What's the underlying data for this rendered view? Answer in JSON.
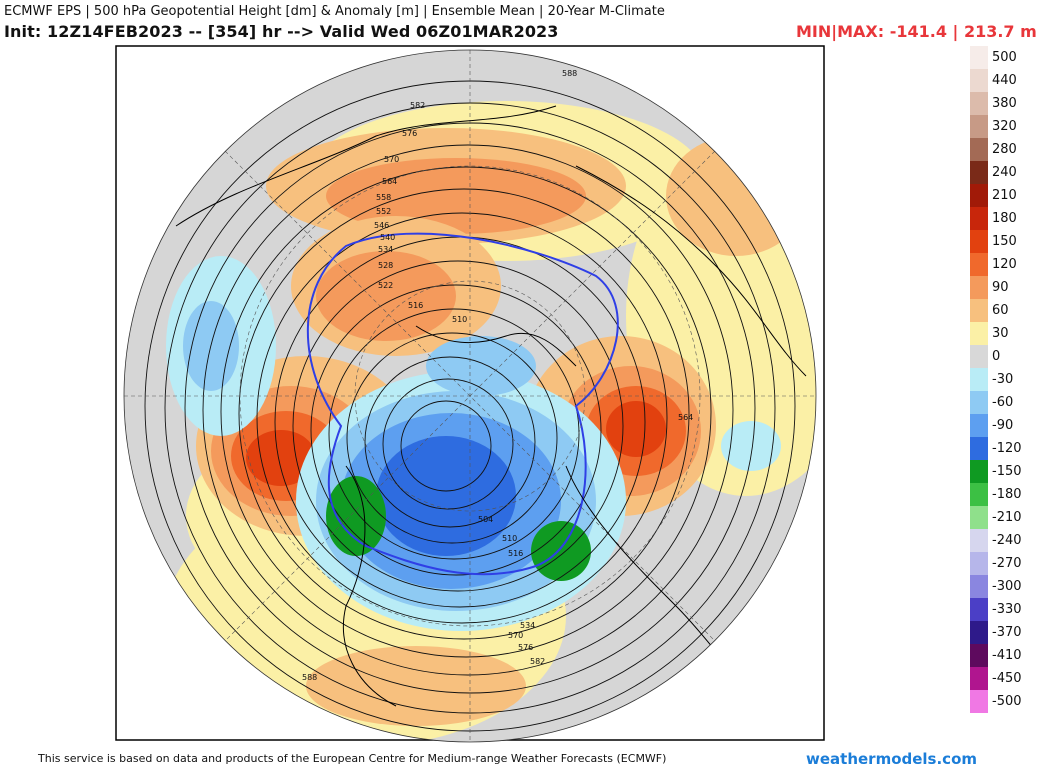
{
  "header": {
    "line1": "ECMWF EPS | 500 hPa Geopotential Height [dm] & Anomaly [m] | Ensemble Mean | 20-Year M-Climate",
    "line2": "Init: 12Z14FEB2023 -- [354] hr --> Valid Wed 06Z01MAR2023",
    "minmax": "MIN|MAX: -141.4 | 213.7 m"
  },
  "footer": {
    "attribution": "This service is based on data and products of the European Centre for Medium-range Weather Forecasts (ECMWF)",
    "brand": "weathermodels.com"
  },
  "colorbar": {
    "levels": [
      {
        "label": "500",
        "color": "#f6ece9"
      },
      {
        "label": "440",
        "color": "#ecd9d0"
      },
      {
        "label": "380",
        "color": "#dcbbab"
      },
      {
        "label": "320",
        "color": "#c79a86"
      },
      {
        "label": "280",
        "color": "#a36a55"
      },
      {
        "label": "240",
        "color": "#7a2a18"
      },
      {
        "label": "210",
        "color": "#a11a08"
      },
      {
        "label": "180",
        "color": "#c8260b"
      },
      {
        "label": "150",
        "color": "#e2410f"
      },
      {
        "label": "120",
        "color": "#f0692c"
      },
      {
        "label": "90",
        "color": "#f49a5c"
      },
      {
        "label": "60",
        "color": "#f7c07e"
      },
      {
        "label": "30",
        "color": "#fbf0a6"
      },
      {
        "label": "0",
        "color": "#d8d8d8"
      },
      {
        "label": "-30",
        "color": "#b9ecf6"
      },
      {
        "label": "-60",
        "color": "#8ecaf3"
      },
      {
        "label": "-90",
        "color": "#5d9ff0"
      },
      {
        "label": "-120",
        "color": "#2e6ce0"
      },
      {
        "label": "-150",
        "color": "#0f9a22"
      },
      {
        "label": "-180",
        "color": "#3cc044"
      },
      {
        "label": "-210",
        "color": "#8fe08b"
      },
      {
        "label": "-240",
        "color": "#d6d6ee"
      },
      {
        "label": "-270",
        "color": "#b6b6ea"
      },
      {
        "label": "-300",
        "color": "#8a86e0"
      },
      {
        "label": "-330",
        "color": "#4b3fc6"
      },
      {
        "label": "-370",
        "color": "#2e1a8a"
      },
      {
        "label": "-410",
        "color": "#5e0a5e"
      },
      {
        "label": "-450",
        "color": "#b0158f"
      },
      {
        "label": "-500",
        "color": "#f078e4"
      }
    ]
  },
  "map": {
    "contour_labels": [
      "588",
      "582",
      "576",
      "570",
      "564",
      "558",
      "552",
      "546",
      "540",
      "534",
      "528",
      "522",
      "516",
      "510",
      "504",
      "564",
      "510",
      "516",
      "534",
      "570",
      "576",
      "582",
      "588"
    ]
  }
}
